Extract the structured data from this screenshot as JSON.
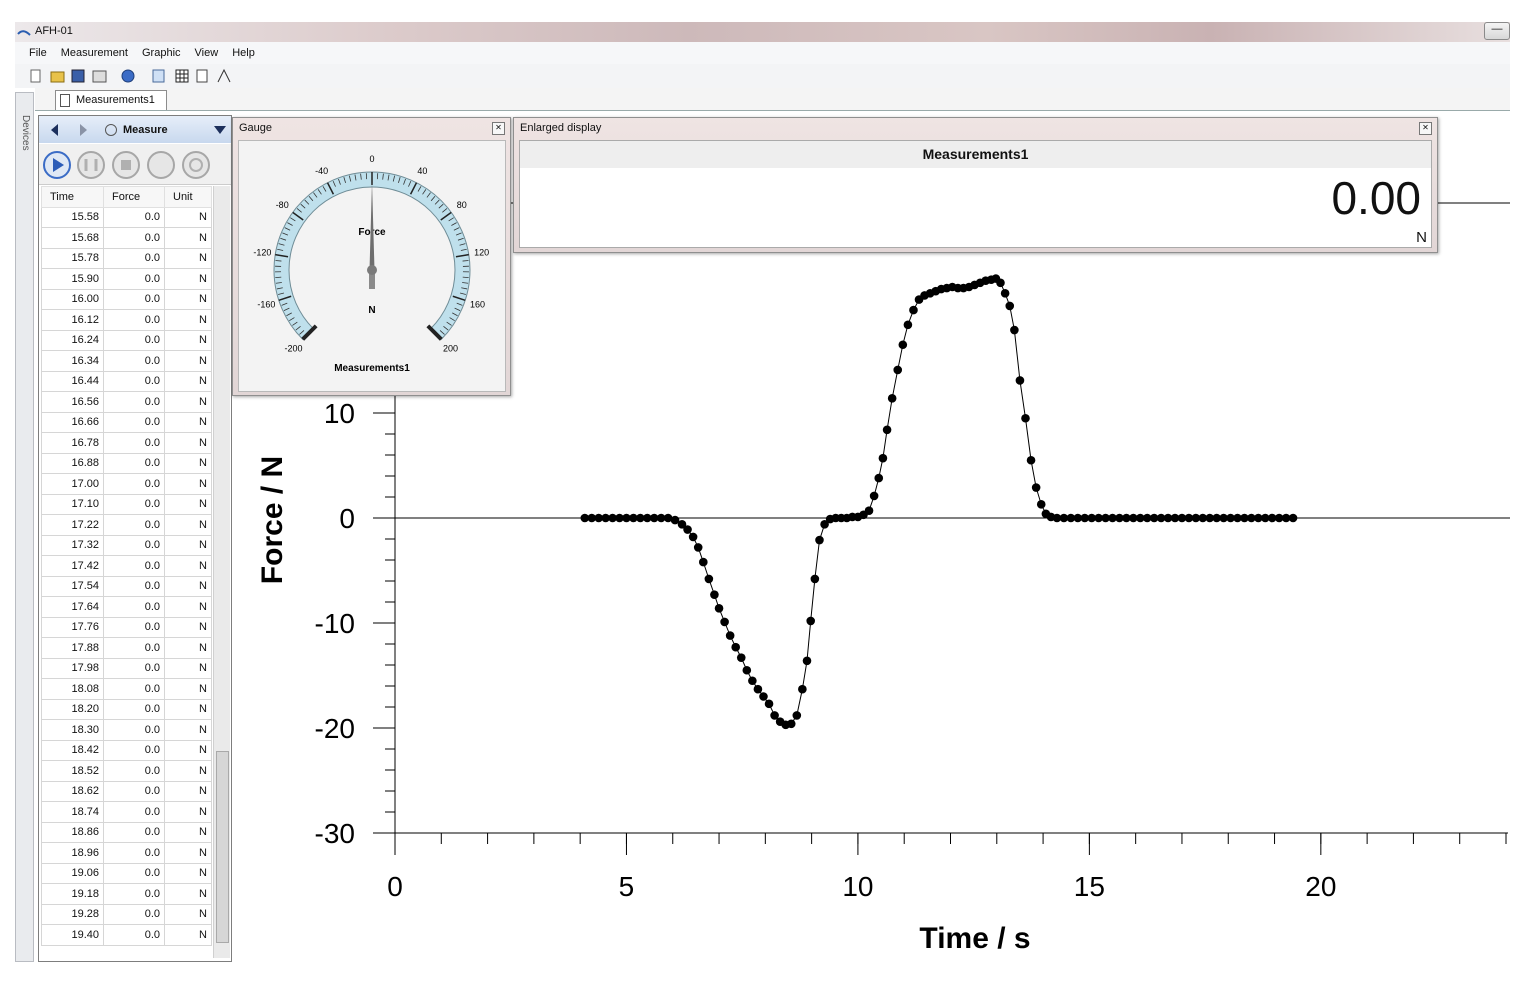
{
  "window": {
    "title": "AFH-01"
  },
  "menu": [
    "File",
    "Measurement",
    "Graphic",
    "View",
    "Help"
  ],
  "tab": "Measurements1",
  "sidebar": "Devices",
  "measure_panel": {
    "label": "Measure"
  },
  "table": {
    "columns": [
      "Time",
      "Force",
      "Unit"
    ],
    "rows": [
      [
        "15.58",
        "0.0",
        "N"
      ],
      [
        "15.68",
        "0.0",
        "N"
      ],
      [
        "15.78",
        "0.0",
        "N"
      ],
      [
        "15.90",
        "0.0",
        "N"
      ],
      [
        "16.00",
        "0.0",
        "N"
      ],
      [
        "16.12",
        "0.0",
        "N"
      ],
      [
        "16.24",
        "0.0",
        "N"
      ],
      [
        "16.34",
        "0.0",
        "N"
      ],
      [
        "16.44",
        "0.0",
        "N"
      ],
      [
        "16.56",
        "0.0",
        "N"
      ],
      [
        "16.66",
        "0.0",
        "N"
      ],
      [
        "16.78",
        "0.0",
        "N"
      ],
      [
        "16.88",
        "0.0",
        "N"
      ],
      [
        "17.00",
        "0.0",
        "N"
      ],
      [
        "17.10",
        "0.0",
        "N"
      ],
      [
        "17.22",
        "0.0",
        "N"
      ],
      [
        "17.32",
        "0.0",
        "N"
      ],
      [
        "17.42",
        "0.0",
        "N"
      ],
      [
        "17.54",
        "0.0",
        "N"
      ],
      [
        "17.64",
        "0.0",
        "N"
      ],
      [
        "17.76",
        "0.0",
        "N"
      ],
      [
        "17.88",
        "0.0",
        "N"
      ],
      [
        "17.98",
        "0.0",
        "N"
      ],
      [
        "18.08",
        "0.0",
        "N"
      ],
      [
        "18.20",
        "0.0",
        "N"
      ],
      [
        "18.30",
        "0.0",
        "N"
      ],
      [
        "18.42",
        "0.0",
        "N"
      ],
      [
        "18.52",
        "0.0",
        "N"
      ],
      [
        "18.62",
        "0.0",
        "N"
      ],
      [
        "18.74",
        "0.0",
        "N"
      ],
      [
        "18.86",
        "0.0",
        "N"
      ],
      [
        "18.96",
        "0.0",
        "N"
      ],
      [
        "19.06",
        "0.0",
        "N"
      ],
      [
        "19.18",
        "0.0",
        "N"
      ],
      [
        "19.28",
        "0.0",
        "N"
      ],
      [
        "19.40",
        "0.0",
        "N"
      ]
    ]
  },
  "gauge": {
    "title": "Gauge",
    "label": "Force",
    "unit": "N",
    "name": "Measurements1",
    "lim": [
      -200,
      200
    ],
    "ticks": [
      -200,
      -160,
      -120,
      -80,
      -40,
      0,
      40,
      80,
      120,
      160,
      200
    ],
    "value": 0
  },
  "display": {
    "title": "Enlarged display",
    "name": "Measurements1",
    "value": "0.00",
    "unit": "N"
  },
  "chart_data": {
    "type": "line",
    "xlabel": "Time / s",
    "ylabel": "Force / N",
    "x": [
      4.1,
      4.25,
      4.4,
      4.55,
      4.7,
      4.85,
      5.0,
      5.15,
      5.3,
      5.45,
      5.6,
      5.75,
      5.9,
      6.05,
      6.2,
      6.32,
      6.44,
      6.55,
      6.66,
      6.78,
      6.9,
      7.0,
      7.12,
      7.24,
      7.36,
      7.48,
      7.6,
      7.72,
      7.84,
      7.96,
      8.08,
      8.2,
      8.32,
      8.44,
      8.56,
      8.68,
      8.8,
      8.9,
      8.98,
      9.07,
      9.17,
      9.28,
      9.4,
      9.52,
      9.64,
      9.76,
      9.88,
      10.0,
      10.12,
      10.24,
      10.35,
      10.45,
      10.54,
      10.63,
      10.74,
      10.86,
      10.97,
      11.08,
      11.2,
      11.32,
      11.44,
      11.56,
      11.68,
      11.8,
      11.92,
      12.04,
      12.16,
      12.28,
      12.4,
      12.52,
      12.64,
      12.76,
      12.88,
      12.98,
      13.08,
      13.18,
      13.28,
      13.38,
      13.5,
      13.62,
      13.74,
      13.85,
      13.96,
      14.06,
      14.17,
      14.3,
      14.45,
      14.6,
      14.75,
      14.9,
      15.05,
      15.2,
      15.35,
      15.5,
      15.65,
      15.8,
      15.95,
      16.1,
      16.25,
      16.4,
      16.55,
      16.7,
      16.85,
      17.0,
      17.15,
      17.3,
      17.45,
      17.6,
      17.75,
      17.9,
      18.05,
      18.2,
      18.35,
      18.5,
      18.65,
      18.8,
      18.95,
      19.1,
      19.25,
      19.4
    ],
    "series": [
      {
        "color": "#000000",
        "values": [
          0,
          0,
          0,
          0,
          0,
          0,
          0,
          0,
          0,
          0,
          0,
          0,
          0,
          -0.2,
          -0.6,
          -1.1,
          -1.8,
          -2.8,
          -4.2,
          -5.8,
          -7.3,
          -8.6,
          -9.9,
          -11.2,
          -12.3,
          -13.3,
          -14.5,
          -15.5,
          -16.3,
          -17.0,
          -17.7,
          -18.8,
          -19.4,
          -19.7,
          -19.6,
          -18.8,
          -16.3,
          -13.6,
          -9.8,
          -5.8,
          -2.1,
          -0.6,
          -0.1,
          0,
          0,
          0,
          0.1,
          0.1,
          0.3,
          0.7,
          2.1,
          3.8,
          5.7,
          8.4,
          11.4,
          14.1,
          16.5,
          18.4,
          19.8,
          20.8,
          21.2,
          21.4,
          21.6,
          21.8,
          21.9,
          22.0,
          21.9,
          21.9,
          22.0,
          22.2,
          22.4,
          22.6,
          22.7,
          22.8,
          22.4,
          21.4,
          20.2,
          17.9,
          13.1,
          9.5,
          5.5,
          2.9,
          1.3,
          0.4,
          0.1,
          0,
          0,
          0,
          0,
          0,
          0,
          0,
          0,
          0,
          0,
          0,
          0,
          0,
          0,
          0,
          0,
          0,
          0,
          0,
          0,
          0,
          0,
          0,
          0,
          0,
          0,
          0,
          0,
          0,
          0,
          0,
          0,
          0,
          0,
          0
        ]
      }
    ],
    "xlim": [
      0,
      24
    ],
    "ylim": [
      -30,
      30
    ],
    "xticks": [
      0,
      5,
      10,
      15,
      20
    ],
    "yticks": [
      -30,
      -20,
      -10,
      0,
      10
    ]
  }
}
